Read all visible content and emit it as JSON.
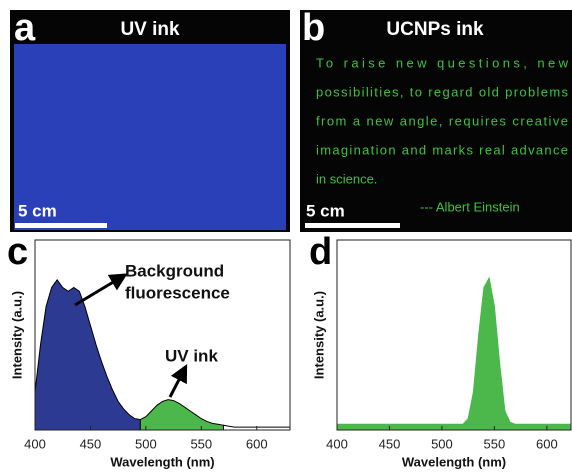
{
  "photos": [
    {
      "letter": "a",
      "title": "UV ink",
      "scale": "5 cm"
    },
    {
      "letter": "b",
      "title": "UCNPs ink",
      "scale": "5 cm",
      "text_lines": [
        "To raise new questions, new",
        "possibilities, to regard old problems",
        "from a new angle, requires creative",
        "imagination and marks real advance",
        "in science."
      ],
      "signature": "--- Albert Einstein"
    }
  ],
  "chart_data": [
    {
      "type": "area",
      "panel": "c",
      "xlabel": "Wavelength (nm)",
      "ylabel": "Intensity (a.u.)",
      "xlim": [
        400,
        630
      ],
      "ylim": [
        0,
        1
      ],
      "xticks": [
        400,
        450,
        500,
        550,
        600
      ],
      "line_color": "#000000",
      "annotations": [
        {
          "lines": [
            "Background",
            "fluorescence"
          ]
        },
        {
          "lines": [
            "UV ink"
          ]
        }
      ],
      "series": [
        {
          "color": "#2d3a92",
          "x": [
            400,
            405,
            410,
            415,
            420,
            425,
            430,
            435,
            440,
            445,
            450,
            455,
            460,
            465,
            470,
            475,
            480,
            485,
            490,
            495
          ],
          "values": [
            0.2,
            0.45,
            0.65,
            0.75,
            0.79,
            0.75,
            0.73,
            0.75,
            0.73,
            0.65,
            0.55,
            0.45,
            0.36,
            0.28,
            0.21,
            0.15,
            0.11,
            0.08,
            0.06,
            0.055
          ]
        },
        {
          "color": "#4cb84c",
          "x": [
            495,
            500,
            505,
            510,
            515,
            520,
            525,
            530,
            535,
            540,
            545,
            550,
            555,
            560,
            565,
            570
          ],
          "values": [
            0.055,
            0.07,
            0.1,
            0.13,
            0.15,
            0.16,
            0.155,
            0.14,
            0.12,
            0.1,
            0.08,
            0.06,
            0.045,
            0.035,
            0.03,
            0.025
          ]
        },
        {
          "color": "#ffffff",
          "x": [
            570,
            575,
            580,
            590,
            600,
            610,
            620,
            630
          ],
          "values": [
            0.025,
            0.02,
            0.015,
            0.015,
            0.015,
            0.015,
            0.015,
            0.015
          ]
        }
      ]
    },
    {
      "type": "area",
      "panel": "d",
      "xlabel": "Wavelength (nm)",
      "ylabel": "Intensity (a.u.)",
      "xlim": [
        400,
        623
      ],
      "ylim": [
        0,
        1
      ],
      "xticks": [
        400,
        450,
        500,
        550,
        600
      ],
      "line_color": "#4cb84c",
      "series": [
        {
          "color": "#4cb84c",
          "x": [
            400,
            450,
            500,
            520,
            525,
            530,
            535,
            540,
            545,
            550,
            555,
            560,
            565,
            570,
            600,
            623
          ],
          "values": [
            0.03,
            0.03,
            0.03,
            0.03,
            0.06,
            0.2,
            0.5,
            0.75,
            0.8,
            0.65,
            0.35,
            0.1,
            0.04,
            0.03,
            0.03,
            0.03
          ]
        }
      ]
    }
  ]
}
